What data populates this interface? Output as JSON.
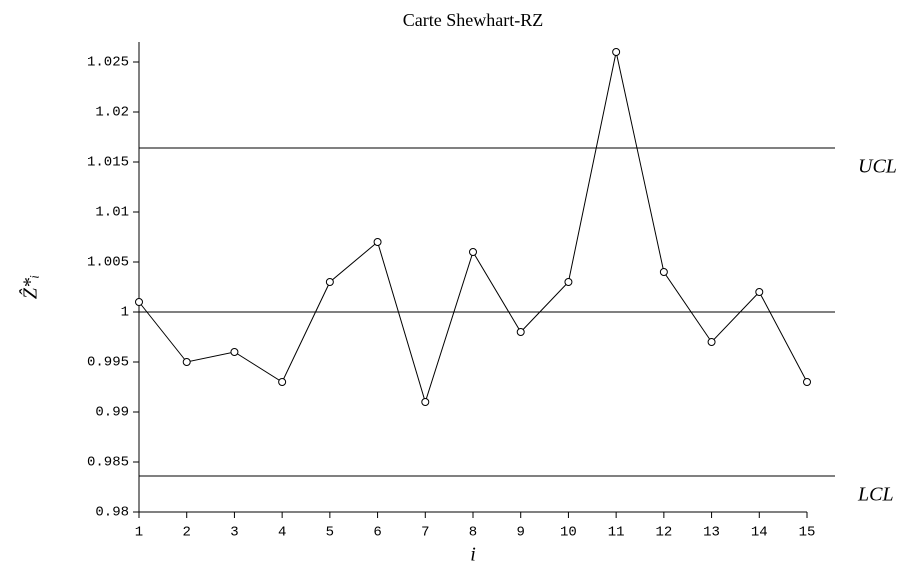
{
  "chart_data": {
    "type": "line",
    "title": "Carte Shewhart-RZ",
    "xlabel": "i",
    "ylabel": "Ẑ*ᵢ",
    "x": [
      1,
      2,
      3,
      4,
      5,
      6,
      7,
      8,
      9,
      10,
      11,
      12,
      13,
      14,
      15
    ],
    "series": [
      {
        "color": "#000000",
        "values": [
          1.001,
          0.995,
          0.996,
          0.993,
          1.003,
          1.007,
          0.991,
          1.006,
          0.998,
          1.003,
          1.026,
          1.004,
          0.997,
          1.002,
          0.993
        ]
      }
    ],
    "control_lines": [
      {
        "label": "UCL",
        "value": 1.0164
      },
      {
        "value": 1.0
      },
      {
        "label": "LCL",
        "value": 0.9836
      }
    ],
    "xlim": [
      1,
      15
    ],
    "xticks": [
      1,
      2,
      3,
      4,
      5,
      6,
      7,
      8,
      9,
      10,
      11,
      12,
      13,
      14,
      15
    ],
    "ylim": [
      0.98,
      1.027
    ],
    "yticks": [
      0.98,
      0.985,
      0.99,
      0.995,
      1,
      1.005,
      1.01,
      1.015,
      1.02,
      1.025
    ]
  }
}
